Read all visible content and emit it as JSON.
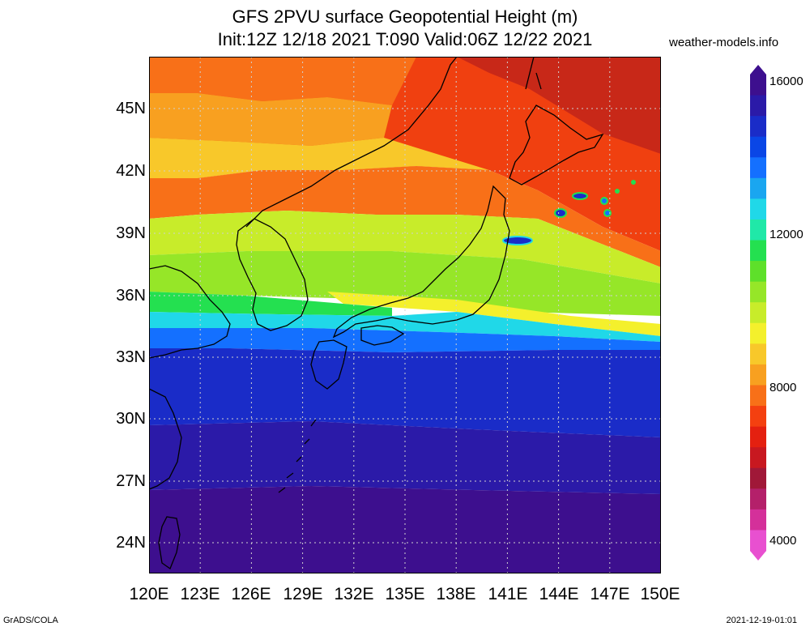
{
  "title": {
    "line1": "GFS 2PVU surface Geopotential Height (m)",
    "line2": "Init:12Z 12/18 2021 T:090 Valid:06Z 12/22 2021"
  },
  "site": "weather-models.info",
  "credit": "GrADS/COLA",
  "timestamp": "2021-12-19-01:01",
  "axes": {
    "lat_labels": [
      "45N",
      "42N",
      "39N",
      "36N",
      "33N",
      "30N",
      "27N",
      "24N"
    ],
    "lon_labels": [
      "120E",
      "123E",
      "126E",
      "129E",
      "132E",
      "135E",
      "138E",
      "141E",
      "144E",
      "147E",
      "150E"
    ]
  },
  "colorbar": {
    "labels": [
      "16000",
      "12000",
      "8000",
      "4000"
    ],
    "colors": [
      "#3d0f8e",
      "#2b1aa8",
      "#1a2cc8",
      "#0a46e6",
      "#1470ff",
      "#1aa6f0",
      "#20d8e8",
      "#20e8a8",
      "#24e050",
      "#5ee02a",
      "#96e628",
      "#c8ec2a",
      "#f4f02c",
      "#f8c82a",
      "#f8a020",
      "#f87018",
      "#f44010",
      "#e42010",
      "#c81820",
      "#a01838",
      "#b4206a",
      "#d4309a",
      "#e850d0"
    ]
  },
  "colors": {
    "grid": "#d0d0d0",
    "coast": "#000000",
    "bands": [
      "#f04010",
      "#f87018",
      "#f8a020",
      "#f8c82a",
      "#c8ec2a",
      "#96e628",
      "#24e050",
      "#20d8e8",
      "#1470ff",
      "#1a2cc8",
      "#2b1aa8",
      "#3d0f8e"
    ]
  }
}
